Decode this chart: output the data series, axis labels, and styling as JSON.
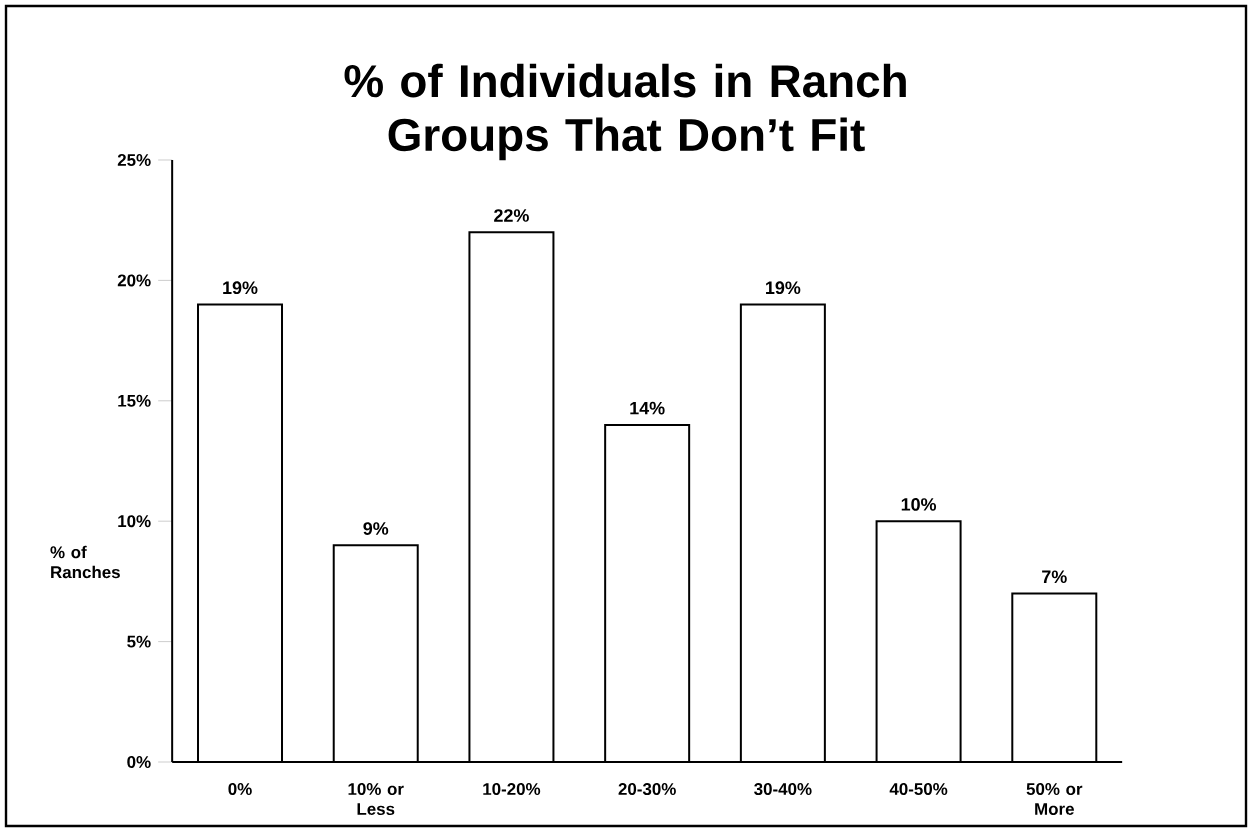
{
  "chart_data": {
    "type": "bar",
    "title": "% of Individuals in Ranch Groups That Don’t Fit",
    "ylabel": "% of Ranches",
    "categories": [
      "0%",
      "10% or Less",
      "10-20%",
      "20-30%",
      "30-40%",
      "40-50%",
      "50% or More"
    ],
    "values": [
      19,
      9,
      22,
      14,
      19,
      10,
      7
    ],
    "value_labels": [
      "19%",
      "9%",
      "22%",
      "14%",
      "19%",
      "10%",
      "7%"
    ],
    "color": "#ffffff",
    "ylim": [
      0,
      25
    ],
    "yticks": [
      {
        "value": 0,
        "label": "0%"
      },
      {
        "value": 5,
        "label": "5%"
      },
      {
        "value": 10,
        "label": "10%"
      },
      {
        "value": 15,
        "label": "15%"
      },
      {
        "value": 20,
        "label": "20%"
      },
      {
        "value": 25,
        "label": "25%"
      }
    ],
    "grid": false,
    "legend": false
  }
}
